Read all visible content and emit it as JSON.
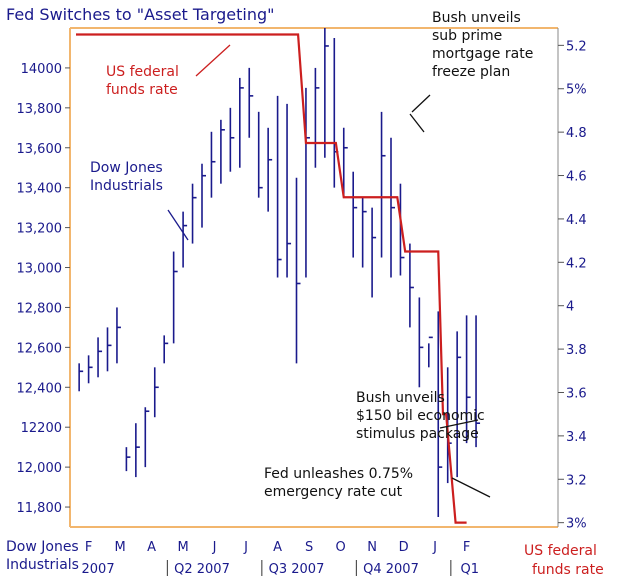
{
  "chart_data": {
    "type": "line",
    "title": "Fed Switches to \"Asset Targeting\"",
    "y_left_ticks": [
      "14000",
      "13,800",
      "13,600",
      "13,400",
      "13,200",
      "13,000",
      "12,800",
      "12,600",
      "12,400",
      "12200",
      "12,000",
      "11,800"
    ],
    "y_right_ticks": [
      "5.2",
      "5%",
      "4.8",
      "4.6",
      "4.4",
      "4.2",
      "4",
      "3.8",
      "3.6",
      "3.4",
      "3.2",
      "3%"
    ],
    "ylim_left": [
      11700,
      14200
    ],
    "ylim_right": [
      2.98,
      5.28
    ],
    "month_labels": [
      "F",
      "M",
      "A",
      "M",
      "J",
      "J",
      "A",
      "S",
      "O",
      "N",
      "D",
      "J",
      "F"
    ],
    "quarter_labels": [
      "2007",
      "Q2 2007",
      "Q3 2007",
      "Q4 2007",
      "Q1"
    ],
    "left_axis_label": [
      "Dow Jones",
      "Industrials"
    ],
    "right_axis_label": [
      "US federal",
      "funds rate"
    ],
    "grid": false,
    "series": [
      {
        "name": "Dow Jones Industrials",
        "color": "#1a1a8c",
        "x": [
          0.1,
          0.4,
          0.7,
          1.0,
          1.3,
          1.6,
          1.9,
          2.2,
          2.5,
          2.8,
          3.1,
          3.4,
          3.7,
          4.0,
          4.3,
          4.6,
          4.9,
          5.2,
          5.5,
          5.8,
          6.1,
          6.4,
          6.7,
          7.0,
          7.3,
          7.6,
          7.9,
          8.2,
          8.5,
          8.8,
          9.1,
          9.4,
          9.7,
          10.0,
          10.3,
          10.6,
          10.9,
          11.2,
          11.5,
          11.8,
          12.1,
          12.4,
          12.7
        ],
        "high": [
          12520,
          12560,
          12650,
          12700,
          12800,
          12100,
          12220,
          12300,
          12500,
          12660,
          13080,
          13280,
          13420,
          13520,
          13680,
          13740,
          13800,
          13950,
          14000,
          13780,
          13700,
          13860,
          13820,
          13450,
          13900,
          14000,
          14200,
          14150,
          13700,
          13480,
          13350,
          13300,
          13780,
          13650,
          13420,
          13120,
          12850,
          12620,
          12780,
          12500,
          12680,
          12760,
          12760
        ],
        "low": [
          12380,
          12420,
          12450,
          12480,
          12520,
          11980,
          11950,
          12000,
          12250,
          12520,
          12620,
          13000,
          13120,
          13200,
          13350,
          13420,
          13480,
          13500,
          13650,
          13350,
          13280,
          12950,
          12950,
          12520,
          12950,
          13500,
          13550,
          13400,
          13350,
          13050,
          13000,
          12850,
          13050,
          12950,
          12960,
          12700,
          12400,
          12500,
          11750,
          11920,
          11950,
          12120,
          12100
        ],
        "close": [
          12480,
          12500,
          12580,
          12610,
          12700,
          12050,
          12100,
          12280,
          12400,
          12620,
          12980,
          13210,
          13350,
          13460,
          13530,
          13690,
          13650,
          13900,
          13860,
          13400,
          13540,
          13040,
          13120,
          12920,
          13650,
          13900,
          14110,
          13580,
          13600,
          13300,
          13280,
          13150,
          13560,
          13300,
          13050,
          12900,
          12600,
          12650,
          12000,
          12120,
          12550,
          12350,
          12220
        ]
      },
      {
        "name": "US federal funds rate",
        "color": "#cc1f1f",
        "x": [
          0.0,
          7.05,
          7.3,
          7.35,
          8.25,
          8.5,
          9.1,
          9.4,
          10.2,
          10.45,
          11.3,
          11.5,
          11.65,
          11.75,
          12.05,
          12.4
        ],
        "values": [
          5.25,
          5.25,
          4.75,
          4.75,
          4.75,
          4.5,
          4.5,
          4.5,
          4.5,
          4.25,
          4.25,
          4.25,
          3.5,
          3.5,
          3.0,
          3.0
        ]
      }
    ],
    "annotations": {
      "us_fed_rate_label": [
        "US federal",
        "funds rate"
      ],
      "dow_label": [
        "Dow Jones",
        "Industrials"
      ],
      "bush_freeze": [
        "Bush unveils",
        "sub prime",
        "mortgage rate",
        "freeze plan"
      ],
      "bush_stimulus": [
        "Bush unveils",
        "$150 bil economic",
        "stimulus package"
      ],
      "fed_cut": [
        "Fed unleashes 0.75%",
        "emergency rate cut"
      ]
    }
  }
}
